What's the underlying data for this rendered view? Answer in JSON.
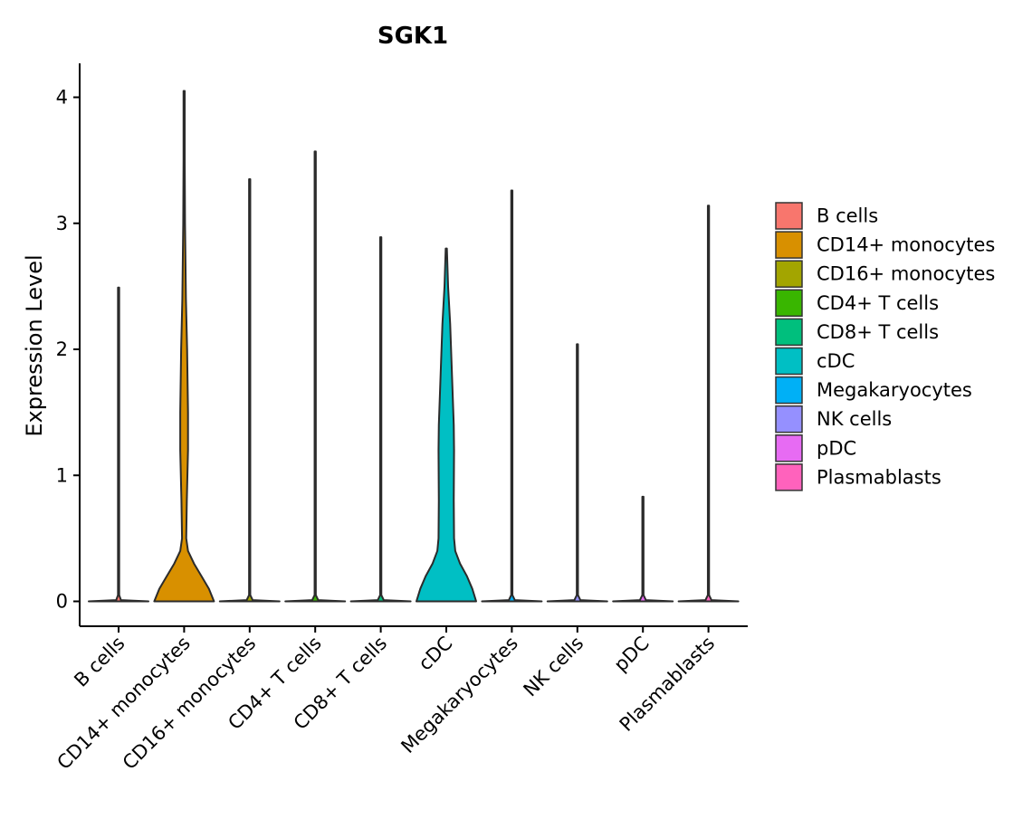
{
  "chart_data": {
    "type": "violin",
    "title": "SGK1",
    "xlabel": "",
    "ylabel": "Expression Level",
    "ylim": [
      -0.2,
      4.25
    ],
    "yticks": [
      0,
      1,
      2,
      3,
      4
    ],
    "categories": [
      "B cells",
      "CD14+ monocytes",
      "CD16+ monocytes",
      "CD4+ T cells",
      "CD8+ T cells",
      "cDC",
      "Megakaryocytes",
      "NK cells",
      "pDC",
      "Plasmablasts"
    ],
    "colors": [
      "#F8766D",
      "#D89000",
      "#A3A500",
      "#39B600",
      "#00BF7D",
      "#00BFC4",
      "#00B0F6",
      "#9590FF",
      "#E76BF3",
      "#FF62BC"
    ],
    "max_values": [
      2.49,
      4.05,
      3.35,
      3.57,
      2.89,
      2.8,
      3.26,
      2.04,
      0.83,
      3.14
    ],
    "density_profiles": [
      [
        [
          0,
          1
        ],
        [
          0.01,
          0.08
        ],
        [
          0.05,
          0.02
        ],
        [
          2.49,
          0.02
        ]
      ],
      [
        [
          0,
          1
        ],
        [
          0.1,
          0.83
        ],
        [
          0.2,
          0.58
        ],
        [
          0.3,
          0.33
        ],
        [
          0.4,
          0.13
        ],
        [
          0.5,
          0.07
        ],
        [
          0.8,
          0.09
        ],
        [
          1.2,
          0.13
        ],
        [
          1.5,
          0.13
        ],
        [
          2.0,
          0.1
        ],
        [
          2.4,
          0.06
        ],
        [
          3.0,
          0.03
        ],
        [
          3.5,
          0.02
        ],
        [
          4.05,
          0.02
        ]
      ],
      [
        [
          0,
          1
        ],
        [
          0.01,
          0.1
        ],
        [
          0.05,
          0.02
        ],
        [
          3.35,
          0.02
        ]
      ],
      [
        [
          0,
          1
        ],
        [
          0.01,
          0.1
        ],
        [
          0.05,
          0.02
        ],
        [
          3.57,
          0.02
        ]
      ],
      [
        [
          0,
          1
        ],
        [
          0.01,
          0.1
        ],
        [
          0.05,
          0.02
        ],
        [
          2.89,
          0.02
        ]
      ],
      [
        [
          0,
          1
        ],
        [
          0.1,
          0.87
        ],
        [
          0.2,
          0.69
        ],
        [
          0.3,
          0.46
        ],
        [
          0.4,
          0.3
        ],
        [
          0.5,
          0.26
        ],
        [
          0.8,
          0.25
        ],
        [
          1.2,
          0.26
        ],
        [
          1.4,
          0.25
        ],
        [
          1.8,
          0.19
        ],
        [
          2.2,
          0.13
        ],
        [
          2.5,
          0.06
        ],
        [
          2.8,
          0.02
        ]
      ],
      [
        [
          0,
          1
        ],
        [
          0.01,
          0.1
        ],
        [
          0.05,
          0.02
        ],
        [
          3.26,
          0.02
        ]
      ],
      [
        [
          0,
          1
        ],
        [
          0.01,
          0.1
        ],
        [
          0.05,
          0.02
        ],
        [
          2.04,
          0.02
        ]
      ],
      [
        [
          0,
          1
        ],
        [
          0.01,
          0.1
        ],
        [
          0.05,
          0.02
        ],
        [
          0.83,
          0.02
        ]
      ],
      [
        [
          0,
          1
        ],
        [
          0.01,
          0.1
        ],
        [
          0.05,
          0.02
        ],
        [
          3.14,
          0.02
        ]
      ]
    ],
    "legend": {
      "position": "right",
      "entries": [
        "B cells",
        "CD14+ monocytes",
        "CD16+ monocytes",
        "CD4+ T cells",
        "CD8+ T cells",
        "cDC",
        "Megakaryocytes",
        "NK cells",
        "pDC",
        "Plasmablasts"
      ]
    }
  }
}
